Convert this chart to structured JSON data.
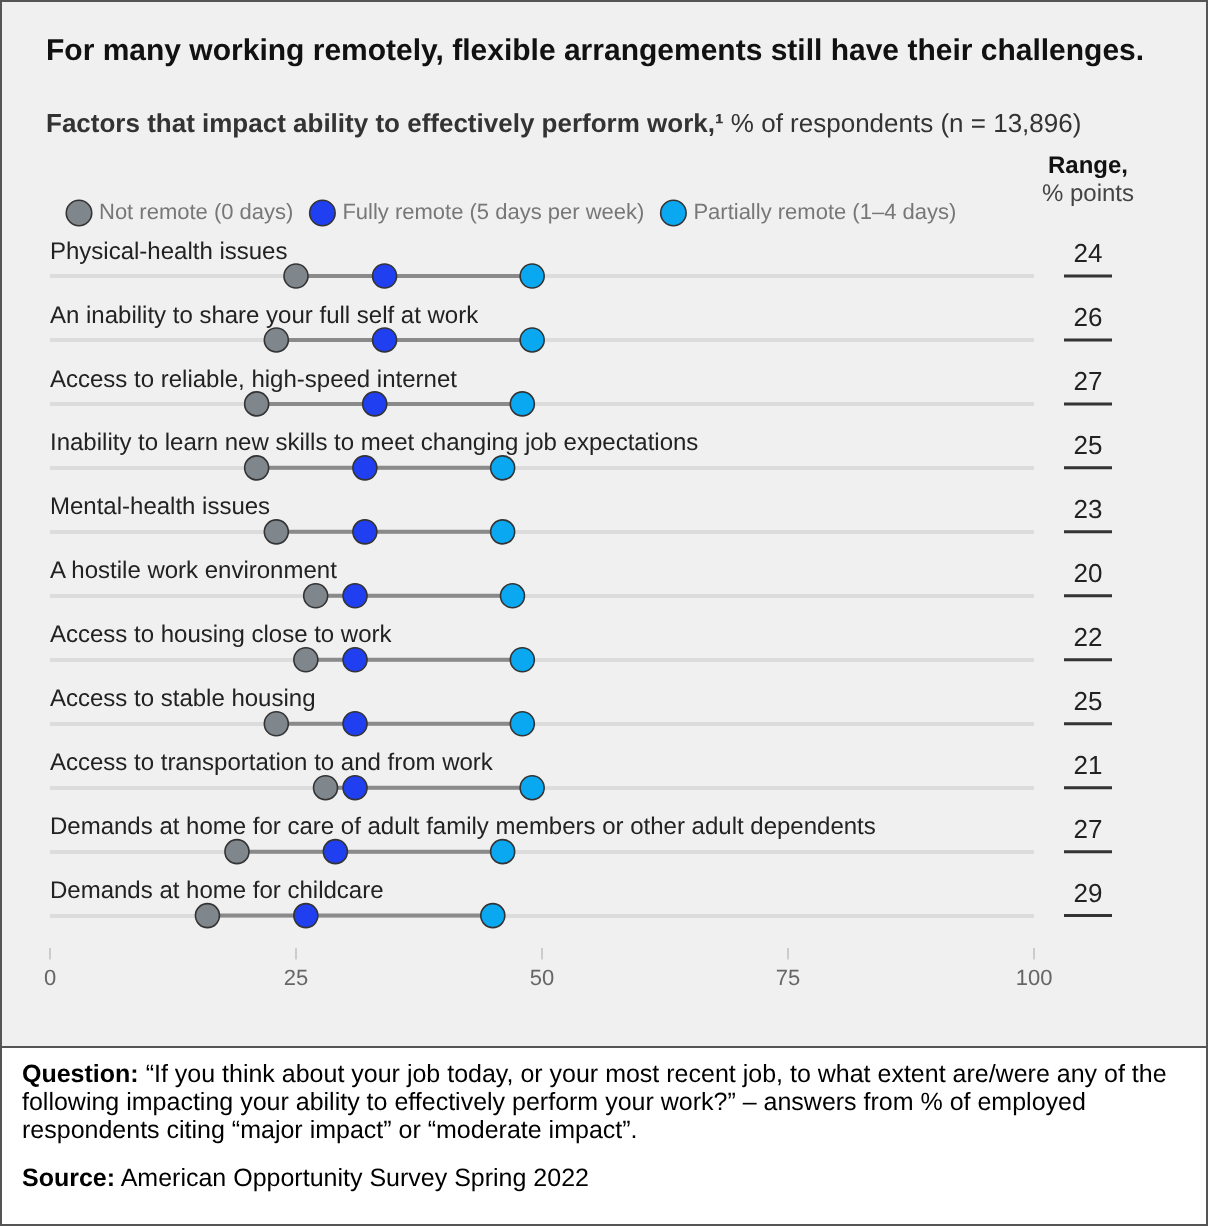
{
  "chart_data": {
    "type": "scatter",
    "orientation": "horizontal",
    "title": "For many working remotely, flexible arrangements still have their challenges.",
    "subtitle": "Factors that impact ability to effectively perform work,¹ % of respondents (n = 13,896)",
    "categories": [
      "Physical-health issues",
      "An inability to share your full self at work",
      "Access to reliable, high-speed internet",
      "Inability to learn new skills to meet changing job expectations",
      "Mental-health issues",
      "A hostile work environment",
      "Access to housing close to work",
      "Access to stable housing",
      "Access to transportation to and from work",
      "Demands at home for care of adult family members or other adult dependents",
      "Demands at home for childcare"
    ],
    "series": [
      {
        "name": "Not remote (0 days)",
        "color": "#7f868c",
        "values": [
          25,
          23,
          21,
          21,
          23,
          27,
          26,
          23,
          28,
          19,
          16
        ]
      },
      {
        "name": "Fully remote (5 days per week)",
        "color": "#1f3ff0",
        "values": [
          34,
          34,
          33,
          32,
          32,
          31,
          31,
          31,
          31,
          29,
          26
        ]
      },
      {
        "name": "Partially remote (1–4 days)",
        "color": "#0aa8f0",
        "values": [
          49,
          49,
          48,
          46,
          46,
          47,
          48,
          48,
          49,
          46,
          45
        ]
      }
    ],
    "xlim": [
      0,
      100
    ],
    "xticks": [
      0,
      25,
      50,
      75,
      100
    ],
    "grid": "y",
    "legend": "top left",
    "marker": "circle",
    "annotations": [
      "Range, % points",
      "24",
      "26",
      "27",
      "25",
      "23",
      "20",
      "22",
      "25",
      "21",
      "27",
      "29",
      "Question: “If you think about your job today, or your most recent job, to what extent are/were any of the following impacting your ability to effectively perform your work?” – answers from % of employed respondents citing “major impact” or “moderate impact”.",
      "Source: American Opportunity Survey Spring 2022"
    ]
  }
}
